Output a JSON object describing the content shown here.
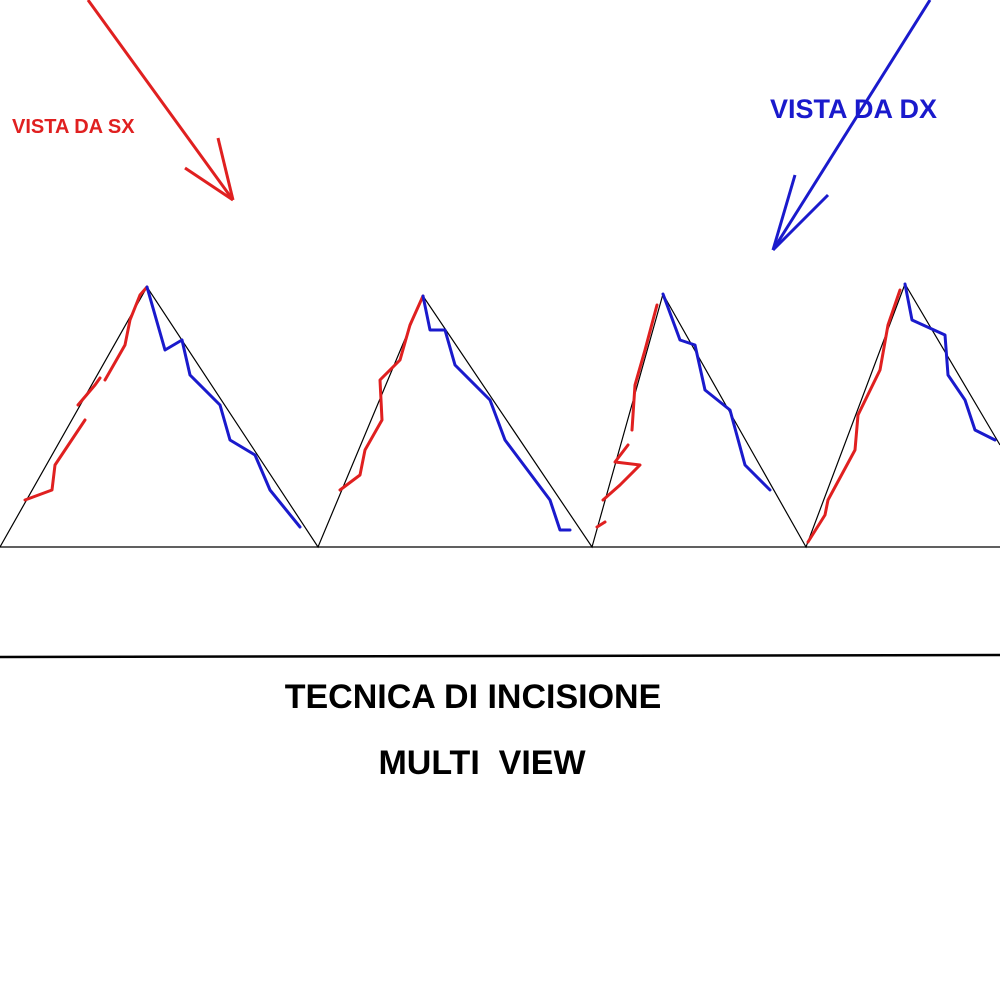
{
  "labels": {
    "left_view": "VISTA DA SX",
    "right_view": "VISTA DA DX"
  },
  "title": {
    "line1": "TECNICA DI INCISIONE",
    "line2": "MULTI  VIEW"
  }
}
